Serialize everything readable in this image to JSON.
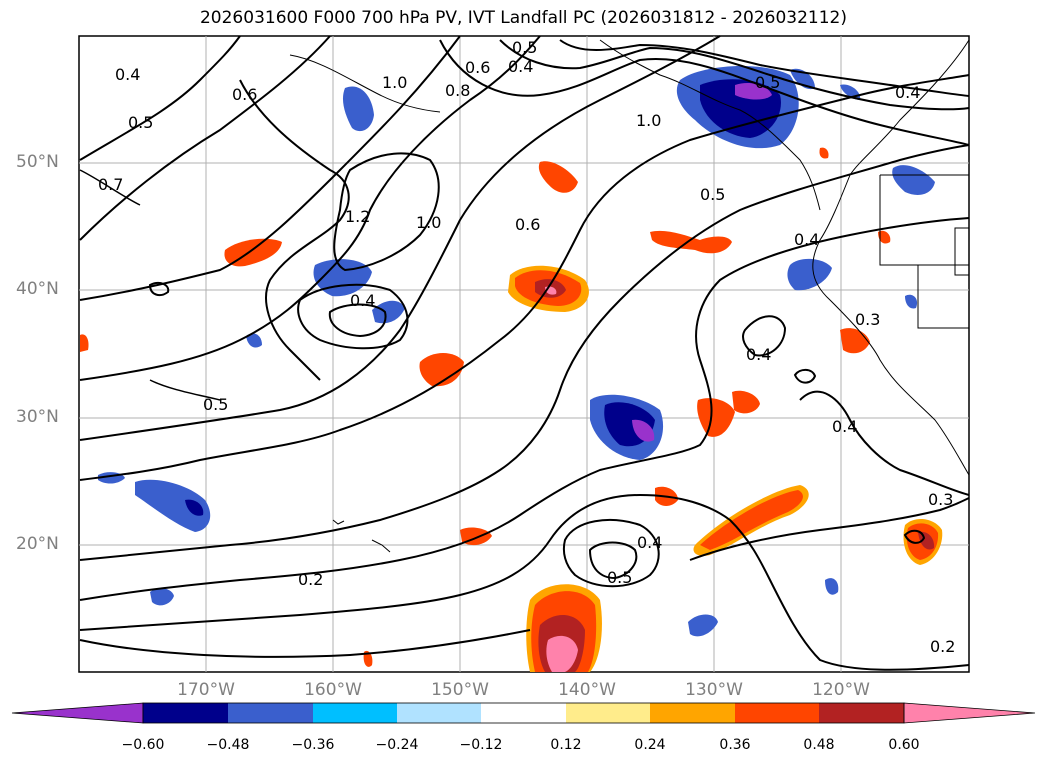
{
  "title": "2026031600 F000 700 hPa PV, IVT Landfall PC (2026031812 - 2026032112)",
  "axes": {
    "lat_labels": [
      "50°N",
      "40°N",
      "30°N",
      "20°N"
    ],
    "lon_labels": [
      "170°W",
      "160°W",
      "150°W",
      "140°W",
      "130°W",
      "120°W"
    ],
    "lon_range": [
      -180,
      -110
    ],
    "lat_range": [
      10,
      60
    ]
  },
  "colorbar": {
    "ticks": [
      "−0.60",
      "−0.48",
      "−0.36",
      "−0.24",
      "−0.12",
      "0.12",
      "0.24",
      "0.36",
      "0.48",
      "0.60"
    ],
    "colors": [
      "#9932cc",
      "#00008b",
      "#3a5fcd",
      "#00bfff",
      "#b0e2ff",
      "#ffffff",
      "#ffec8b",
      "#ffa500",
      "#ff4500",
      "#b22222",
      "#ff82ab"
    ]
  },
  "contour_labels": [
    "0.4",
    "0.5",
    "0.6",
    "0.4",
    "1.0",
    "0.8",
    "0.6",
    "0.5",
    "0.4",
    "1.0",
    "0.5",
    "0.7",
    "1.2",
    "1.0",
    "0.6",
    "0.5",
    "0.4",
    "0.4",
    "0.3",
    "0.4",
    "0.5",
    "0.4",
    "0.3",
    "0.4",
    "0.5",
    "0.2",
    "0.2"
  ]
}
